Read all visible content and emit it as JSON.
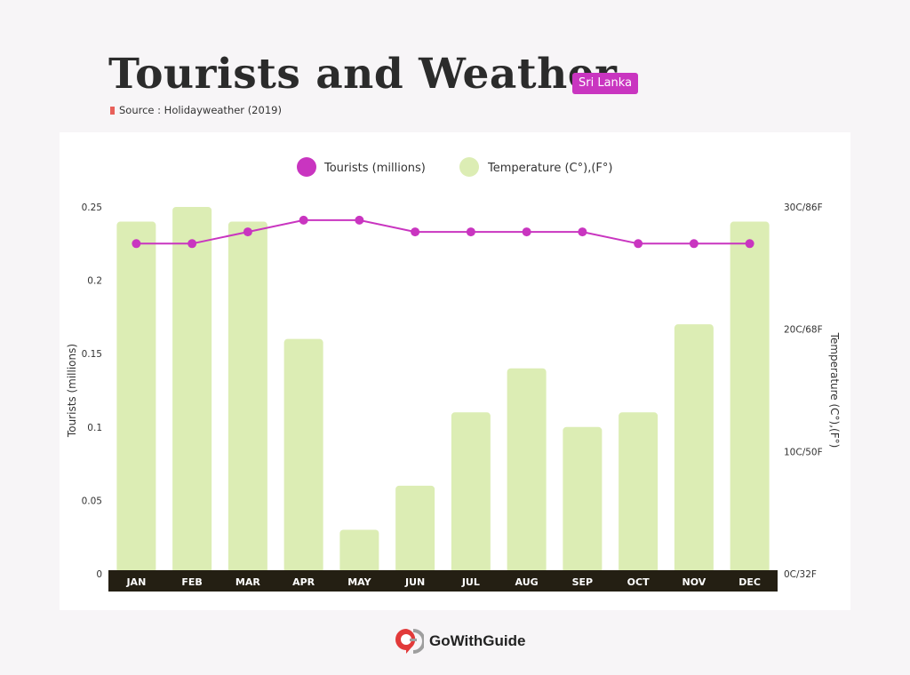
{
  "header": {
    "title": "Tourists and Weather",
    "tag": "Sri Lanka",
    "source": "Source : Holidayweather (2019)"
  },
  "footer": {
    "brand": "GoWithGuide"
  },
  "colors": {
    "tourists": "#c935c0",
    "temperature": "#dcedb4",
    "axis_band": "#241f13",
    "tag": "#c935c0",
    "source_mark": "#e8605a"
  },
  "chart_data": {
    "type": "bar",
    "categories": [
      "JAN",
      "FEB",
      "MAR",
      "APR",
      "MAY",
      "JUN",
      "JUL",
      "AUG",
      "SEP",
      "OCT",
      "NOV",
      "DEC"
    ],
    "series": [
      {
        "name": "Tourists (millions)",
        "type": "line",
        "axis": "left",
        "values": [
          0.225,
          0.225,
          0.233,
          0.241,
          0.241,
          0.233,
          0.233,
          0.233,
          0.233,
          0.225,
          0.225,
          0.225
        ]
      },
      {
        "name": "Temperature (C°),(F°)",
        "type": "bar",
        "axis": "right",
        "values": [
          0.24,
          0.25,
          0.24,
          0.16,
          0.03,
          0.06,
          0.11,
          0.14,
          0.1,
          0.11,
          0.17,
          0.24
        ]
      }
    ],
    "ylabel": "Tourists (millions)",
    "y2label": "Temperature (C°),(F°)",
    "ylim": [
      0,
      0.25
    ],
    "yticks": [
      0,
      0.05,
      0.1,
      0.15,
      0.2,
      0.25
    ],
    "ytick_labels": [
      "0",
      "0.05",
      "0.1",
      "0.15",
      "0.2",
      "0.25"
    ],
    "y2ticks": [
      "0C/32F",
      "10C/50F",
      "20C/68F",
      "30C/86F"
    ],
    "legend_position": "top-center",
    "grid": false
  }
}
